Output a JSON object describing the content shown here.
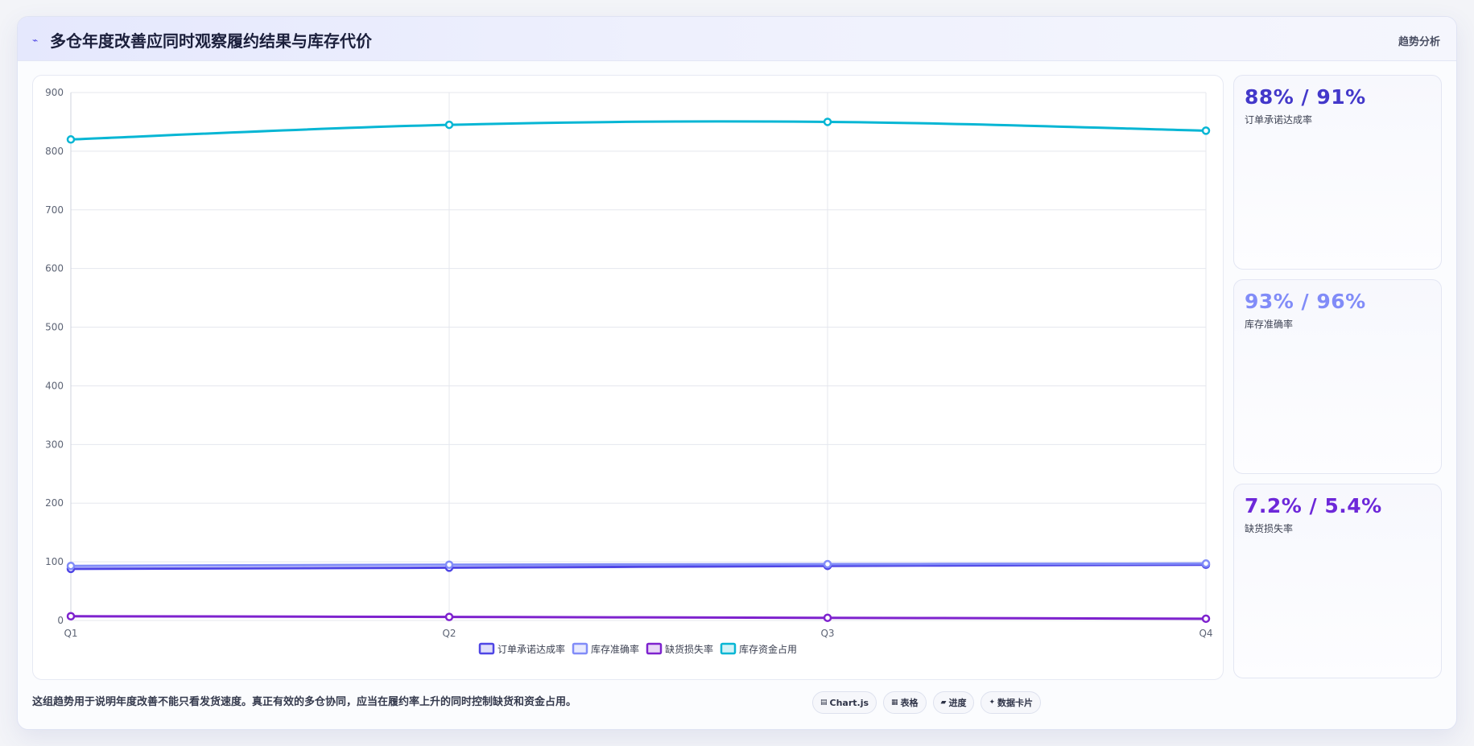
{
  "header": {
    "icon": "chart-line-icon",
    "title": "多仓年度改善应同时观察履约结果与库存代价",
    "right_label": "趋势分析"
  },
  "chart_data": {
    "type": "line",
    "categories": [
      "Q1",
      "Q2",
      "Q3",
      "Q4"
    ],
    "ylim": [
      0,
      900
    ],
    "yticks": [
      0,
      100,
      200,
      300,
      400,
      500,
      600,
      700,
      800,
      900
    ],
    "grid": true,
    "legend_position": "bottom",
    "series": [
      {
        "name": "订单承诺达成率",
        "values": [
          88,
          90,
          93,
          95
        ],
        "color": "#4f46e5"
      },
      {
        "name": "库存准确率",
        "values": [
          93,
          95,
          96,
          97
        ],
        "color": "#818cf8"
      },
      {
        "name": "缺货损失率",
        "values": [
          7.2,
          6.0,
          4.5,
          3.0
        ],
        "color": "#7e22ce"
      },
      {
        "name": "库存资金占用",
        "values": [
          820,
          845,
          850,
          835
        ],
        "color": "#06b6d4"
      }
    ]
  },
  "kpis": [
    {
      "value": "88% / 91%",
      "label": "订单承诺达成率",
      "color": "#4338ca"
    },
    {
      "value": "93% / 96%",
      "label": "库存准确率",
      "color": "#818cf8"
    },
    {
      "value": "7.2% / 5.4%",
      "label": "缺货损失率",
      "color": "#6d28d9"
    }
  ],
  "footer": {
    "note": "这组趋势用于说明年度改善不能只看发货速度。真正有效的多仓协同，应当在履约率上升的同时控制缺货和资金占用。",
    "chips": [
      {
        "icon": "chart-icon",
        "glyph": "▤",
        "label": "Chart.js"
      },
      {
        "icon": "table-icon",
        "glyph": "▦",
        "label": "表格"
      },
      {
        "icon": "progress-icon",
        "glyph": "▰",
        "label": "进度"
      },
      {
        "icon": "sparkle-icon",
        "glyph": "✦",
        "label": "数据卡片"
      }
    ]
  }
}
